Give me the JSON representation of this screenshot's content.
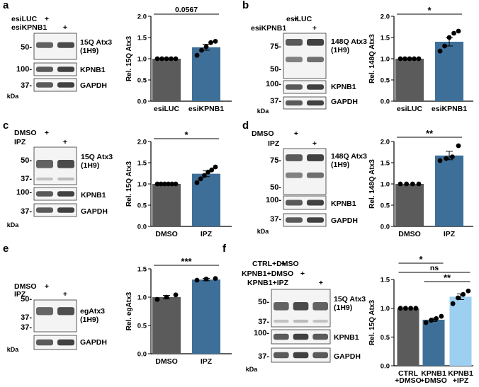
{
  "panels": [
    {
      "letter": "a",
      "conditions": [
        {
          "name": "esiLUC",
          "marks": [
            "+",
            ""
          ]
        },
        {
          "name": "esiKPNB1",
          "marks": [
            "",
            "+"
          ]
        }
      ],
      "markers": [
        "50-",
        "100-",
        "37-"
      ],
      "bands": [
        "15Q Atx3\n(1H9)",
        "KPNB1",
        "GAPDH"
      ],
      "kda": "kDa"
    },
    {
      "letter": "b",
      "conditions": [
        {
          "name": "esiLUC",
          "marks": [
            "+",
            ""
          ]
        },
        {
          "name": "esiKPNB1",
          "marks": [
            "",
            "+"
          ]
        }
      ],
      "markers": [
        "75-",
        "50-",
        "100-",
        "37-"
      ],
      "bands": [
        "148Q Atx3\n(1H9)",
        "KPNB1",
        "GAPDH"
      ],
      "kda": "kDa"
    },
    {
      "letter": "c",
      "conditions": [
        {
          "name": "DMSO",
          "marks": [
            "+",
            ""
          ]
        },
        {
          "name": "IPZ",
          "marks": [
            "",
            "+"
          ]
        }
      ],
      "markers": [
        "50-",
        "37-",
        "100-",
        "37-"
      ],
      "bands": [
        "15Q Atx3\n(1H9)",
        "KPNB1",
        "GAPDH"
      ],
      "kda": "kDa"
    },
    {
      "letter": "d",
      "conditions": [
        {
          "name": "DMSO",
          "marks": [
            "+",
            ""
          ]
        },
        {
          "name": "IPZ",
          "marks": [
            "",
            "+"
          ]
        }
      ],
      "markers": [
        "75-",
        "50-",
        "100-",
        "37-"
      ],
      "bands": [
        "148Q Atx3\n(1H9)",
        "KPNB1",
        "GAPDH"
      ],
      "kda": "kDa"
    },
    {
      "letter": "e",
      "conditions": [
        {
          "name": "DMSO",
          "marks": [
            "+",
            ""
          ]
        },
        {
          "name": "IPZ",
          "marks": [
            "",
            "+"
          ]
        }
      ],
      "markers": [
        "50-",
        "37-",
        "37-"
      ],
      "bands": [
        "egAtx3\n(1H9)",
        "GAPDH"
      ],
      "kda": "kDa"
    },
    {
      "letter": "f",
      "conditions": [
        {
          "name": "CTRL+DMSO",
          "marks": [
            "+",
            "",
            ""
          ]
        },
        {
          "name": "KPNB1+DMSO",
          "marks": [
            "",
            "+",
            ""
          ]
        },
        {
          "name": "KPNB1+IPZ",
          "marks": [
            "",
            "",
            "+"
          ]
        }
      ],
      "markers": [
        "50-",
        "37-",
        "100-",
        "37-"
      ],
      "bands": [
        "15Q Atx3\n(1H9)",
        "KPNB1",
        "GAPDH"
      ],
      "kda": "kDa"
    }
  ],
  "chart_data": [
    {
      "panel": "a",
      "type": "bar",
      "categories": [
        "esiLUC",
        "esiKPNB1"
      ],
      "values": [
        1.0,
        1.27
      ],
      "errors": [
        0,
        0.07
      ],
      "points": [
        [
          1,
          1,
          1,
          1,
          1
        ],
        [
          1.08,
          1.2,
          1.28,
          1.38,
          1.41
        ]
      ],
      "colors": [
        "#5b5b5b",
        "#3d6f99"
      ],
      "ylabel": "Rel. 15Q Atx3",
      "ylim": [
        0,
        2.0
      ],
      "yticks": [
        0.0,
        0.5,
        1.0,
        1.5,
        2.0
      ],
      "significance": [
        {
          "from": 0,
          "to": 1,
          "label": "0.0567"
        }
      ]
    },
    {
      "panel": "b",
      "type": "bar",
      "categories": [
        "esiLUC",
        "esiKPNB1"
      ],
      "values": [
        1.0,
        1.4
      ],
      "errors": [
        0,
        0.1
      ],
      "points": [
        [
          1,
          1,
          1,
          1,
          1
        ],
        [
          1.18,
          1.3,
          1.5,
          1.6,
          1.65
        ]
      ],
      "colors": [
        "#5b5b5b",
        "#3d6f99"
      ],
      "ylabel": "Rel. 148Q Atx3",
      "ylim": [
        0,
        2.0
      ],
      "yticks": [
        0.0,
        0.5,
        1.0,
        1.5,
        2.0
      ],
      "significance": [
        {
          "from": 0,
          "to": 1,
          "label": "*"
        }
      ]
    },
    {
      "panel": "c",
      "type": "bar",
      "categories": [
        "DMSO",
        "IPZ"
      ],
      "values": [
        1.0,
        1.24
      ],
      "errors": [
        0,
        0.07
      ],
      "points": [
        [
          1,
          1,
          1,
          1,
          1,
          1
        ],
        [
          1.03,
          1.12,
          1.2,
          1.28,
          1.33,
          1.4
        ]
      ],
      "colors": [
        "#5b5b5b",
        "#3d6f99"
      ],
      "ylabel": "Rel. 15Q Atx3",
      "ylim": [
        0,
        2.0
      ],
      "yticks": [
        0.0,
        0.5,
        1.0,
        1.5,
        2.0
      ],
      "significance": [
        {
          "from": 0,
          "to": 1,
          "label": "*"
        }
      ]
    },
    {
      "panel": "d",
      "type": "bar",
      "categories": [
        "DMSO",
        "IPZ"
      ],
      "values": [
        1.0,
        1.67
      ],
      "errors": [
        0,
        0.1
      ],
      "points": [
        [
          1,
          1,
          1,
          1
        ],
        [
          1.55,
          1.6,
          1.64,
          1.9
        ]
      ],
      "colors": [
        "#5b5b5b",
        "#3d6f99"
      ],
      "ylabel": "Rel. 148Q Atx3",
      "ylim": [
        0,
        2.0
      ],
      "yticks": [
        0.0,
        0.5,
        1.0,
        1.5,
        2.0
      ],
      "significance": [
        {
          "from": 0,
          "to": 1,
          "label": "**"
        }
      ]
    },
    {
      "panel": "e",
      "type": "bar",
      "categories": [
        "DMSO",
        "IPZ"
      ],
      "values": [
        1.0,
        1.31
      ],
      "errors": [
        0.03,
        0.02
      ],
      "points": [
        [
          0.96,
          1.0,
          1.04
        ],
        [
          1.3,
          1.32,
          1.33
        ]
      ],
      "colors": [
        "#5b5b5b",
        "#3d6f99"
      ],
      "ylabel": "Rel. egAtx3",
      "ylim": [
        0,
        1.5
      ],
      "yticks": [
        0.0,
        0.5,
        1.0,
        1.5
      ],
      "significance": [
        {
          "from": 0,
          "to": 1,
          "label": "***"
        }
      ]
    },
    {
      "panel": "f",
      "type": "bar",
      "categories": [
        "CTRL\n+DMSO",
        "KPNB1\n+DMSO",
        "KPNB1\n+IPZ"
      ],
      "values": [
        1.0,
        0.8,
        1.2
      ],
      "errors": [
        0,
        0.03,
        0.05
      ],
      "points": [
        [
          1,
          1,
          1,
          1
        ],
        [
          0.75,
          0.79,
          0.82,
          0.86
        ],
        [
          1.08,
          1.18,
          1.24,
          1.3
        ]
      ],
      "colors": [
        "#5b5b5b",
        "#3d6f99",
        "#9dcff0"
      ],
      "ylabel": "Rel. 15Q Atx3",
      "ylim": [
        0,
        1.5
      ],
      "yticks": [
        0.0,
        0.5,
        1.0,
        1.5
      ],
      "significance": [
        {
          "from": 0,
          "to": 1,
          "label": "*"
        },
        {
          "from": 0,
          "to": 2,
          "label": "ns"
        },
        {
          "from": 1,
          "to": 2,
          "label": "**"
        }
      ]
    }
  ]
}
